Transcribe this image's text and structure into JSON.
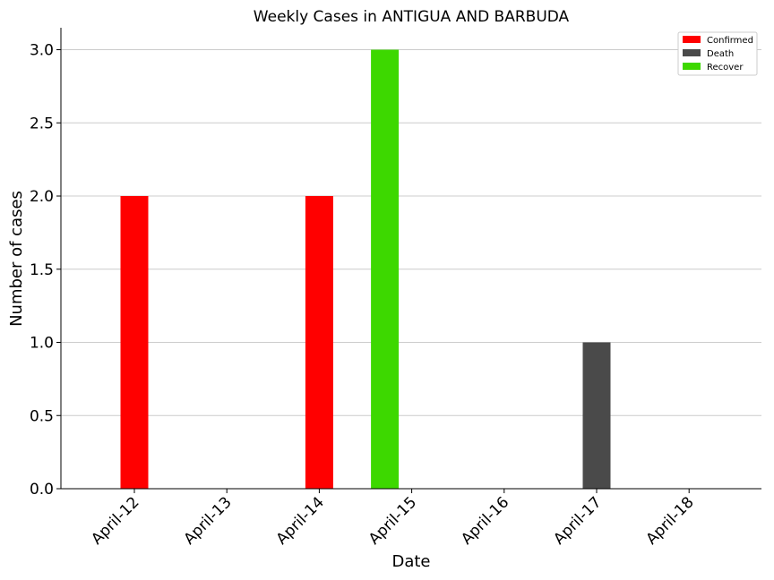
{
  "chart_data": {
    "type": "bar",
    "title": "Weekly Cases in ANTIGUA AND BARBUDA",
    "xlabel": "Date",
    "ylabel": "Number of cases",
    "categories": [
      "April-12",
      "April-13",
      "April-14",
      "April-15",
      "April-16",
      "April-17",
      "April-18"
    ],
    "series": [
      {
        "name": "Confirmed",
        "color": "#ff0000",
        "values": [
          2,
          0,
          2,
          0,
          0,
          0,
          0
        ]
      },
      {
        "name": "Death",
        "color": "#4a4a4a",
        "values": [
          0,
          0,
          0,
          0,
          0,
          1,
          0
        ]
      },
      {
        "name": "Recover",
        "color": "#3dd800",
        "values": [
          0,
          0,
          0,
          3,
          0,
          0,
          0
        ]
      }
    ],
    "ylim": [
      0,
      3.15
    ],
    "yticks": [
      "0.0",
      "0.5",
      "1.0",
      "1.5",
      "2.0",
      "2.5",
      "3.0"
    ],
    "grid": "horizontal",
    "legend_position": "top-right"
  }
}
